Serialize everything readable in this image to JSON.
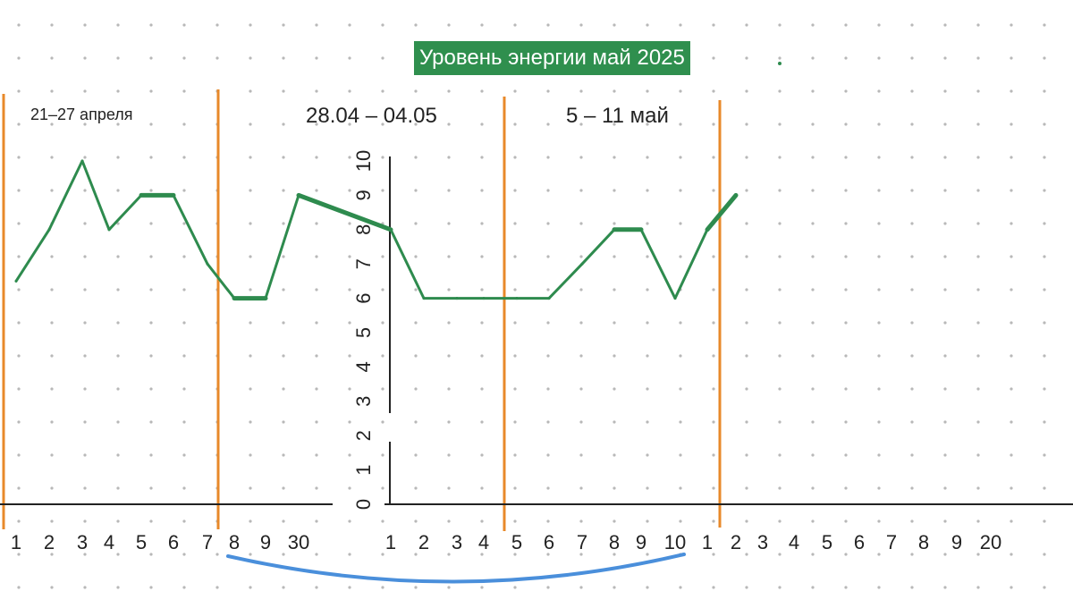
{
  "title": "Уровень энергии май 2025",
  "weeks": [
    "21–27 апреля",
    "28.04 – 04.05",
    "5 – 11 май"
  ],
  "colors": {
    "line": "#2e8b4e",
    "title_bg": "#2f8f4e",
    "separator": "#e8892a",
    "bracket": "#4a8fdb",
    "axis": "#222222",
    "grid_dot": "#b8b8b8"
  },
  "chart_data": {
    "type": "line",
    "title": "Уровень энергии май 2025",
    "x_tick_labels": [
      "1",
      "2",
      "3",
      "4",
      "5",
      "6",
      "7",
      "8",
      "9",
      "30",
      "1",
      "2",
      "3",
      "4",
      "5",
      "6",
      "7",
      "8",
      "9",
      "10",
      "1",
      "2",
      "3",
      "4",
      "5",
      "6",
      "7",
      "8",
      "9",
      "20"
    ],
    "y_tick_labels": [
      "0",
      "1",
      "2",
      "3",
      "4",
      "5",
      "6",
      "7",
      "8",
      "9",
      "10"
    ],
    "ylim": [
      0,
      10
    ],
    "grid": "dotted",
    "series": [
      {
        "x": [
          "1",
          "2",
          "3",
          "4",
          "5",
          "6",
          "7",
          "8",
          "9",
          "30",
          "1",
          "2",
          "3",
          "4",
          "5",
          "6",
          "7",
          "8",
          "9",
          "10",
          "1",
          "2"
        ],
        "values": [
          6.5,
          8,
          10,
          8,
          9,
          9,
          7,
          6,
          6,
          9,
          8,
          6,
          6,
          6,
          6,
          6,
          7,
          8,
          8,
          6,
          8,
          9
        ]
      }
    ]
  }
}
